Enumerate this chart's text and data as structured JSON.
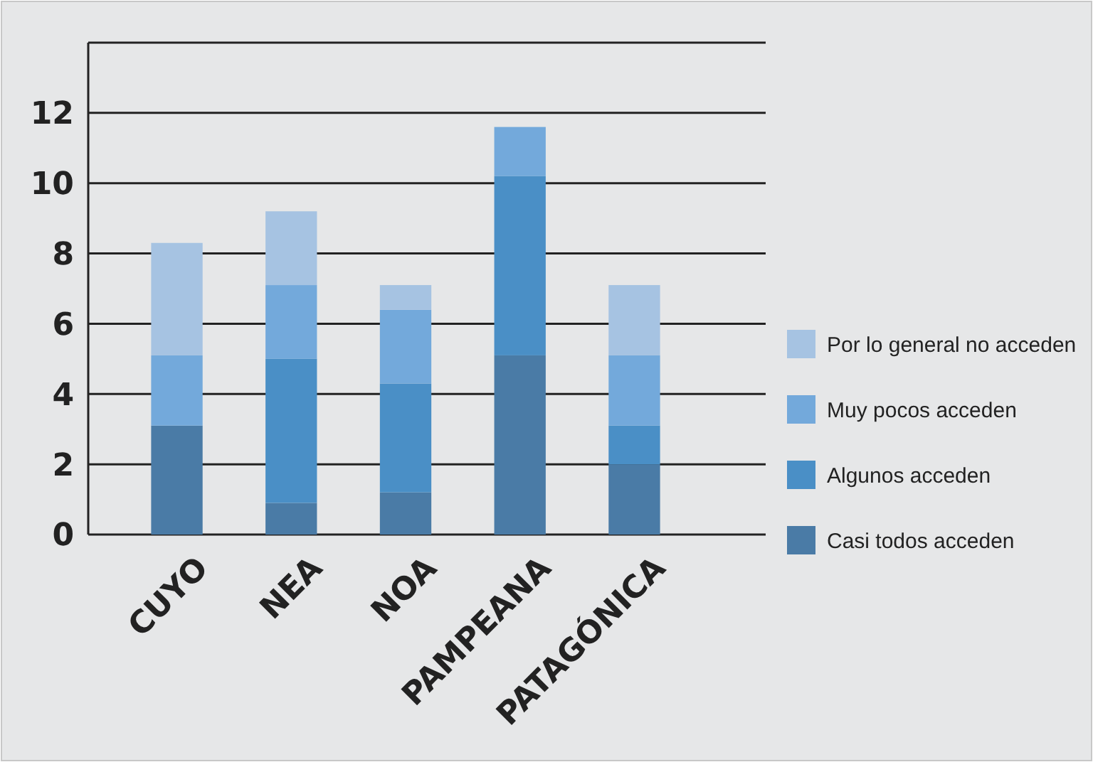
{
  "chart_data": {
    "type": "bar",
    "stacked": true,
    "categories": [
      "CUYO",
      "NEA",
      "NOA",
      "PAMPEANA",
      "PATAGÓNICA"
    ],
    "series": [
      {
        "name": "Casi todos acceden",
        "color": "#4a7ba6",
        "values": [
          3.1,
          0.9,
          1.2,
          5.1,
          2.0
        ]
      },
      {
        "name": "Algunos acceden",
        "color": "#4a8fc6",
        "values": [
          0,
          4.1,
          3.1,
          5.1,
          1.1
        ]
      },
      {
        "name": "Muy pocos acceden",
        "color": "#73a9db",
        "values": [
          2.0,
          2.1,
          2.1,
          1.4,
          2.0
        ]
      },
      {
        "name": "Por lo general no acceden",
        "color": "#a6c3e2",
        "values": [
          3.2,
          2.1,
          0.7,
          null,
          2.0
        ]
      }
    ],
    "ylim": [
      0,
      14
    ],
    "yticks": [
      0,
      2,
      4,
      6,
      8,
      10,
      12,
      {
        "value": 14,
        "label": null
      }
    ],
    "grid": "y",
    "legend": "right"
  }
}
